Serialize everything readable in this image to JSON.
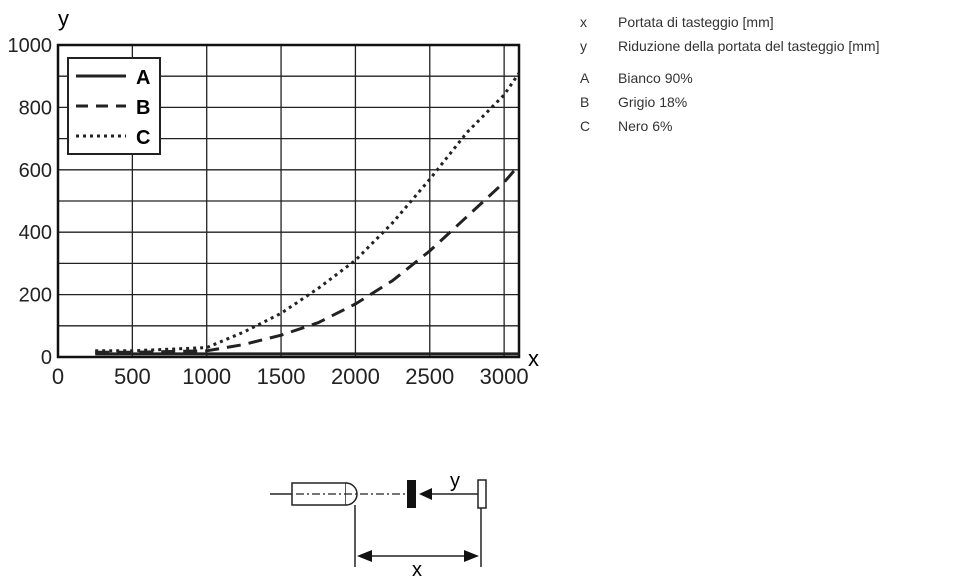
{
  "chart_data": {
    "type": "line",
    "xlabel": "x",
    "ylabel": "y",
    "xlim": [
      0,
      3100
    ],
    "ylim": [
      0,
      1000
    ],
    "x_ticks": [
      "0",
      "500",
      "1000",
      "1500",
      "2000",
      "2500",
      "3000"
    ],
    "y_ticks": [
      "0",
      "200",
      "400",
      "600",
      "800",
      "1000"
    ],
    "grid": true,
    "legend_position": "top-left",
    "series": [
      {
        "name": "A",
        "style": "solid",
        "x": [
          250,
          500,
          1000,
          1500,
          2000,
          2500,
          3100
        ],
        "y": [
          10,
          10,
          10,
          10,
          10,
          10,
          10
        ]
      },
      {
        "name": "B",
        "style": "dashed",
        "x": [
          250,
          500,
          1000,
          1250,
          1500,
          1750,
          2000,
          2250,
          2500,
          2750,
          3000,
          3100
        ],
        "y": [
          15,
          15,
          20,
          40,
          70,
          110,
          170,
          245,
          340,
          450,
          560,
          615
        ]
      },
      {
        "name": "C",
        "style": "dotted",
        "x": [
          250,
          500,
          1000,
          1250,
          1500,
          1750,
          2000,
          2250,
          2500,
          2750,
          3000,
          3100
        ],
        "y": [
          20,
          20,
          30,
          80,
          140,
          220,
          310,
          430,
          570,
          720,
          840,
          910
        ]
      }
    ]
  },
  "legend": {
    "items": [
      {
        "key": "x",
        "text": "Portata di tasteggio [mm]"
      },
      {
        "key": "y",
        "text": "Riduzione della portata del tasteggio [mm]"
      },
      {
        "key": "A",
        "text": "Bianco 90%"
      },
      {
        "key": "B",
        "text": "Grigio 18%"
      },
      {
        "key": "C",
        "text": "Nero 6%"
      }
    ]
  },
  "diagram": {
    "y_label": "y",
    "x_label": "x"
  }
}
